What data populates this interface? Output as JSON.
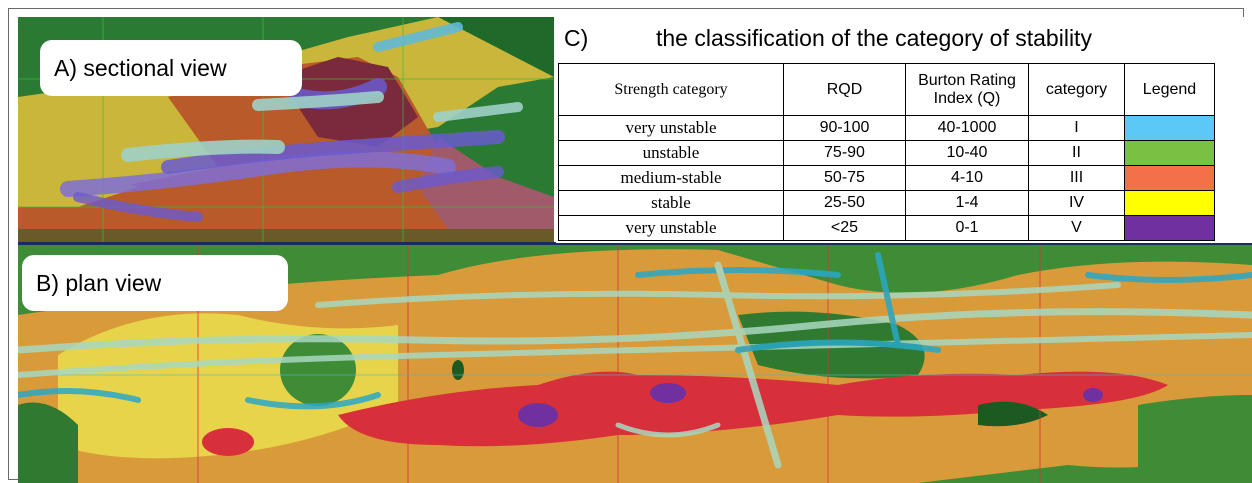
{
  "panel_a": {
    "label": "A) sectional view"
  },
  "panel_b": {
    "label": "B) plan view"
  },
  "panel_c": {
    "letter": "C)",
    "title": "the classification of the category of stability",
    "headers": [
      "Strength category",
      "RQD",
      "Burton Rating Index (Q)",
      "category",
      "Legend"
    ],
    "rows": [
      {
        "strength": "very unstable",
        "rqd": "90-100",
        "q": "40-1000",
        "category": "I",
        "color": "#5bc8f5"
      },
      {
        "strength": "unstable",
        "rqd": "75-90",
        "q": "10-40",
        "category": "II",
        "color": "#7ac143"
      },
      {
        "strength": "medium-stable",
        "rqd": "50-75",
        "q": "4-10",
        "category": "III",
        "color": "#f47048"
      },
      {
        "strength": "stable",
        "rqd": "25-50",
        "q": "1-4",
        "category": "IV",
        "color": "#ffff00"
      },
      {
        "strength": "very unstable",
        "rqd": "<25",
        "q": "0-1",
        "category": "V",
        "color": "#7030a0"
      }
    ]
  }
}
